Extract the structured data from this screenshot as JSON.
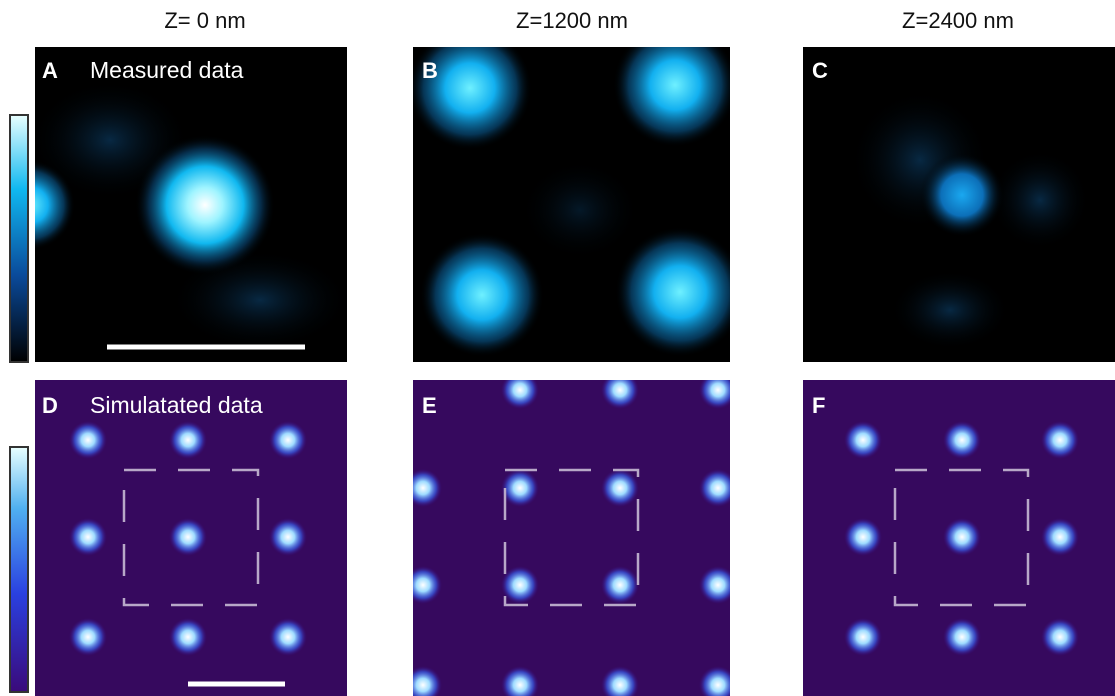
{
  "columns": [
    "Z= 0 nm",
    "Z=1200 nm",
    "Z=2400 nm"
  ],
  "panels": [
    {
      "letter": "A",
      "caption": "Measured data"
    },
    {
      "letter": "B"
    },
    {
      "letter": "C"
    },
    {
      "letter": "D",
      "caption": "Simulatated data"
    },
    {
      "letter": "E"
    },
    {
      "letter": "F"
    }
  ]
}
